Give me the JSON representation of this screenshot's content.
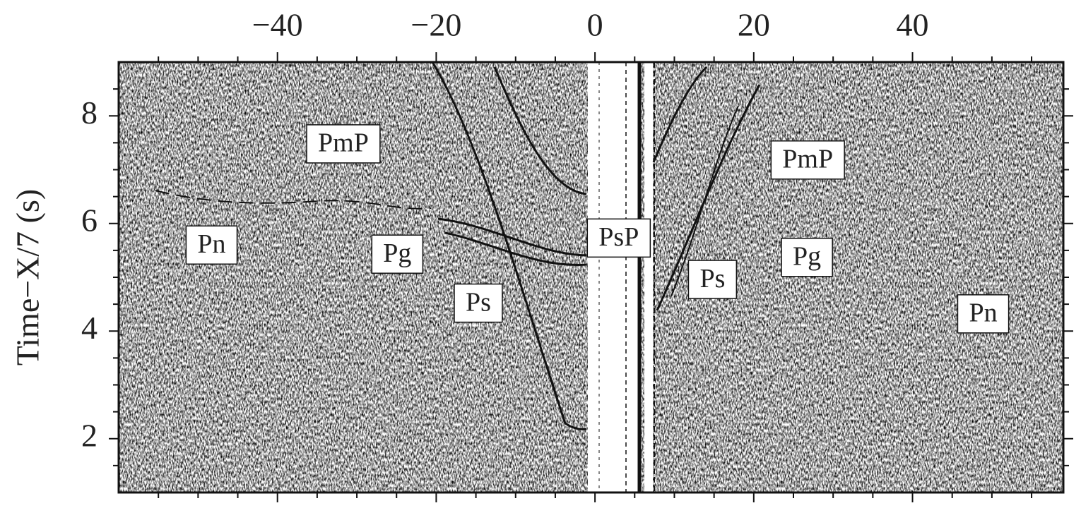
{
  "chart_data": {
    "type": "seismic-section",
    "ylabel": "Time−X/7 (s)",
    "xlim": [
      -60,
      59
    ],
    "ylim": [
      1,
      9
    ],
    "xticks": [
      {
        "value": -40,
        "label": "−40"
      },
      {
        "value": -20,
        "label": "−20"
      },
      0,
      20,
      40
    ],
    "yticks": [
      2,
      4,
      6,
      8
    ],
    "x_minor_ticks": [
      -55,
      -50,
      -45,
      -35,
      -30,
      -25,
      -15,
      -10,
      -5,
      5,
      10,
      15,
      25,
      30,
      35,
      45,
      50,
      55
    ],
    "y_minor_ticks": [
      1.5,
      2.5,
      3,
      3.5,
      4.5,
      5,
      5.5,
      6.5,
      7,
      7.5,
      8.5
    ],
    "annotations": [
      {
        "text": "PmP",
        "x": -31.7,
        "y": 7.48
      },
      {
        "text": "Pn",
        "x": -48.3,
        "y": 5.6
      },
      {
        "text": "Pg",
        "x": -24.9,
        "y": 5.43
      },
      {
        "text": "Ps",
        "x": -14.7,
        "y": 4.52
      },
      {
        "text": "PsP",
        "x": 3.0,
        "y": 5.73
      },
      {
        "text": "PmP",
        "x": 26.8,
        "y": 7.18
      },
      {
        "text": "Ps",
        "x": 14.8,
        "y": 4.96
      },
      {
        "text": "Pg",
        "x": 26.7,
        "y": 5.37
      },
      {
        "text": "Pn",
        "x": 48.9,
        "y": 4.32
      }
    ]
  }
}
